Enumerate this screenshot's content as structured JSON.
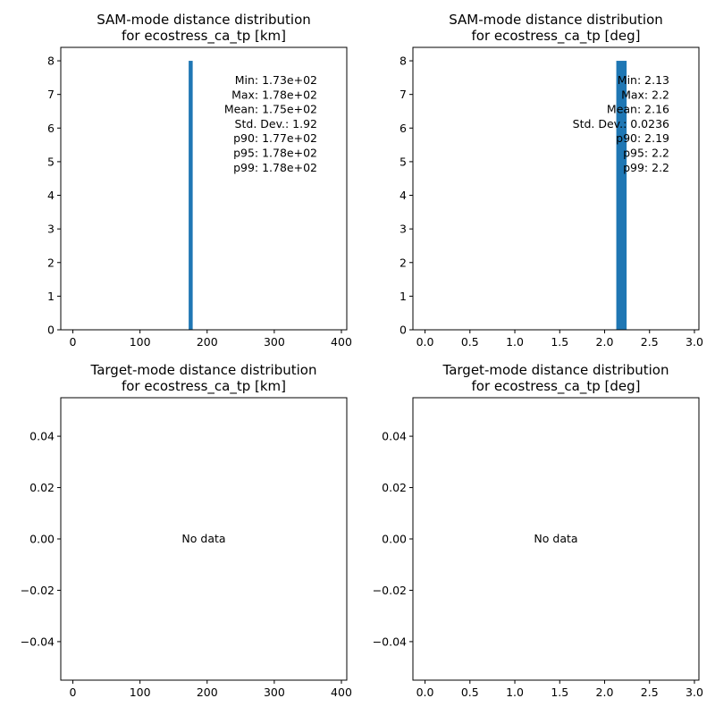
{
  "chart_data": [
    {
      "type": "bar",
      "title": "SAM-mode distance distribution\nfor ecostress_ca_tp [km]",
      "xlabel": "",
      "ylabel": "",
      "xlim": [
        -18,
        408
      ],
      "ylim": [
        0,
        8.4
      ],
      "xticks": [
        0,
        100,
        200,
        300,
        400
      ],
      "xtick_labels": [
        "0",
        "100",
        "200",
        "300",
        "400"
      ],
      "yticks": [
        0,
        1,
        2,
        3,
        4,
        5,
        6,
        7,
        8
      ],
      "ytick_labels": [
        "0",
        "1",
        "2",
        "3",
        "4",
        "5",
        "6",
        "7",
        "8"
      ],
      "bins": [
        {
          "x0": 172.5,
          "x1": 178.5,
          "value": 8
        }
      ],
      "bar_color": "#1f77b4",
      "stats": [
        "Min: 1.73e+02",
        "Max: 1.78e+02",
        "Mean: 1.75e+02",
        "Std. Dev.: 1.92",
        "p90: 1.77e+02",
        "p95: 1.78e+02",
        "p99: 1.78e+02"
      ],
      "no_data_text": ""
    },
    {
      "type": "bar",
      "title": "SAM-mode distance distribution\nfor ecostress_ca_tp [deg]",
      "xlabel": "",
      "ylabel": "",
      "xlim": [
        -0.135,
        3.05
      ],
      "ylim": [
        0,
        8.4
      ],
      "xticks": [
        0,
        0.5,
        1,
        1.5,
        2,
        2.5,
        3
      ],
      "xtick_labels": [
        "0.0",
        "0.5",
        "1.0",
        "1.5",
        "2.0",
        "2.5",
        "3.0"
      ],
      "yticks": [
        0,
        1,
        2,
        3,
        4,
        5,
        6,
        7,
        8
      ],
      "ytick_labels": [
        "0",
        "1",
        "2",
        "3",
        "4",
        "5",
        "6",
        "7",
        "8"
      ],
      "bins": [
        {
          "x0": 2.13,
          "x1": 2.245,
          "value": 8
        }
      ],
      "bar_color": "#1f77b4",
      "stats": [
        "Min: 2.13",
        "Max: 2.2",
        "Mean: 2.16",
        "Std. Dev.: 0.0236",
        "p90: 2.19",
        "p95: 2.2",
        "p99: 2.2"
      ],
      "no_data_text": ""
    },
    {
      "type": "bar",
      "title": "Target-mode distance distribution\nfor ecostress_ca_tp [km]",
      "xlabel": "",
      "ylabel": "",
      "xlim": [
        -18,
        408
      ],
      "ylim": [
        -0.055,
        0.055
      ],
      "xticks": [
        0,
        100,
        200,
        300,
        400
      ],
      "xtick_labels": [
        "0",
        "100",
        "200",
        "300",
        "400"
      ],
      "yticks": [
        0.04,
        0.02,
        0.0,
        -0.02,
        -0.04
      ],
      "ytick_labels": [
        "0.04",
        "0.02",
        "0.00",
        "−0.02",
        "−0.04"
      ],
      "bins": [],
      "bar_color": "#1f77b4",
      "stats": [],
      "no_data_text": "No data"
    },
    {
      "type": "bar",
      "title": "Target-mode distance distribution\nfor ecostress_ca_tp [deg]",
      "xlabel": "",
      "ylabel": "",
      "xlim": [
        -0.135,
        3.05
      ],
      "ylim": [
        -0.055,
        0.055
      ],
      "xticks": [
        0,
        0.5,
        1,
        1.5,
        2,
        2.5,
        3
      ],
      "xtick_labels": [
        "0.0",
        "0.5",
        "1.0",
        "1.5",
        "2.0",
        "2.5",
        "3.0"
      ],
      "yticks": [
        0.04,
        0.02,
        0.0,
        -0.02,
        -0.04
      ],
      "ytick_labels": [
        "0.04",
        "0.02",
        "0.00",
        "−0.02",
        "−0.04"
      ],
      "bins": [],
      "bar_color": "#1f77b4",
      "stats": [],
      "no_data_text": "No data"
    }
  ]
}
